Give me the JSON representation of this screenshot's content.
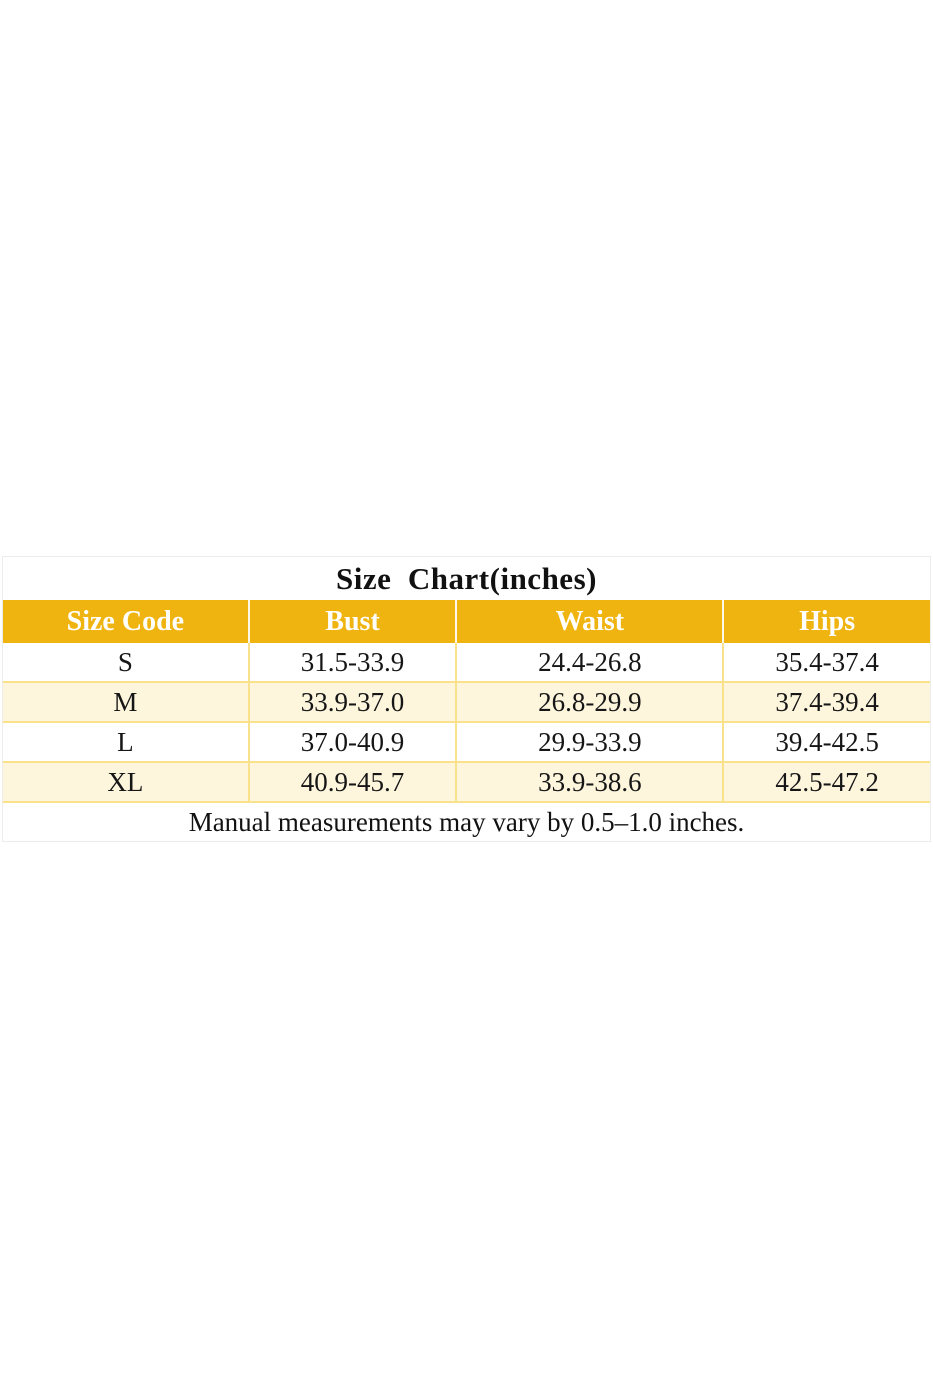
{
  "size_chart": {
    "title": "Size  Chart(inches)",
    "columns": [
      "Size Code",
      "Bust",
      "Waist",
      "Hips"
    ],
    "rows": [
      {
        "size": "S",
        "bust": "31.5-33.9",
        "waist": "24.4-26.8",
        "hips": "35.4-37.4"
      },
      {
        "size": "M",
        "bust": "33.9-37.0",
        "waist": "26.8-29.9",
        "hips": "37.4-39.4"
      },
      {
        "size": "L",
        "bust": "37.0-40.9",
        "waist": "29.9-33.9",
        "hips": "39.4-42.5"
      },
      {
        "size": "XL",
        "bust": "40.9-45.7",
        "waist": "33.9-38.6",
        "hips": "42.5-47.2"
      }
    ],
    "note": "Manual measurements may vary by 0.5–1.0 inches.",
    "colors": {
      "header_bg": "#efb410",
      "header_text": "#ffffff",
      "alt_row_bg": "#fdf6dd",
      "grid_line": "#fae18c",
      "outer_border": "#ececec",
      "body_text": "#161616"
    }
  }
}
